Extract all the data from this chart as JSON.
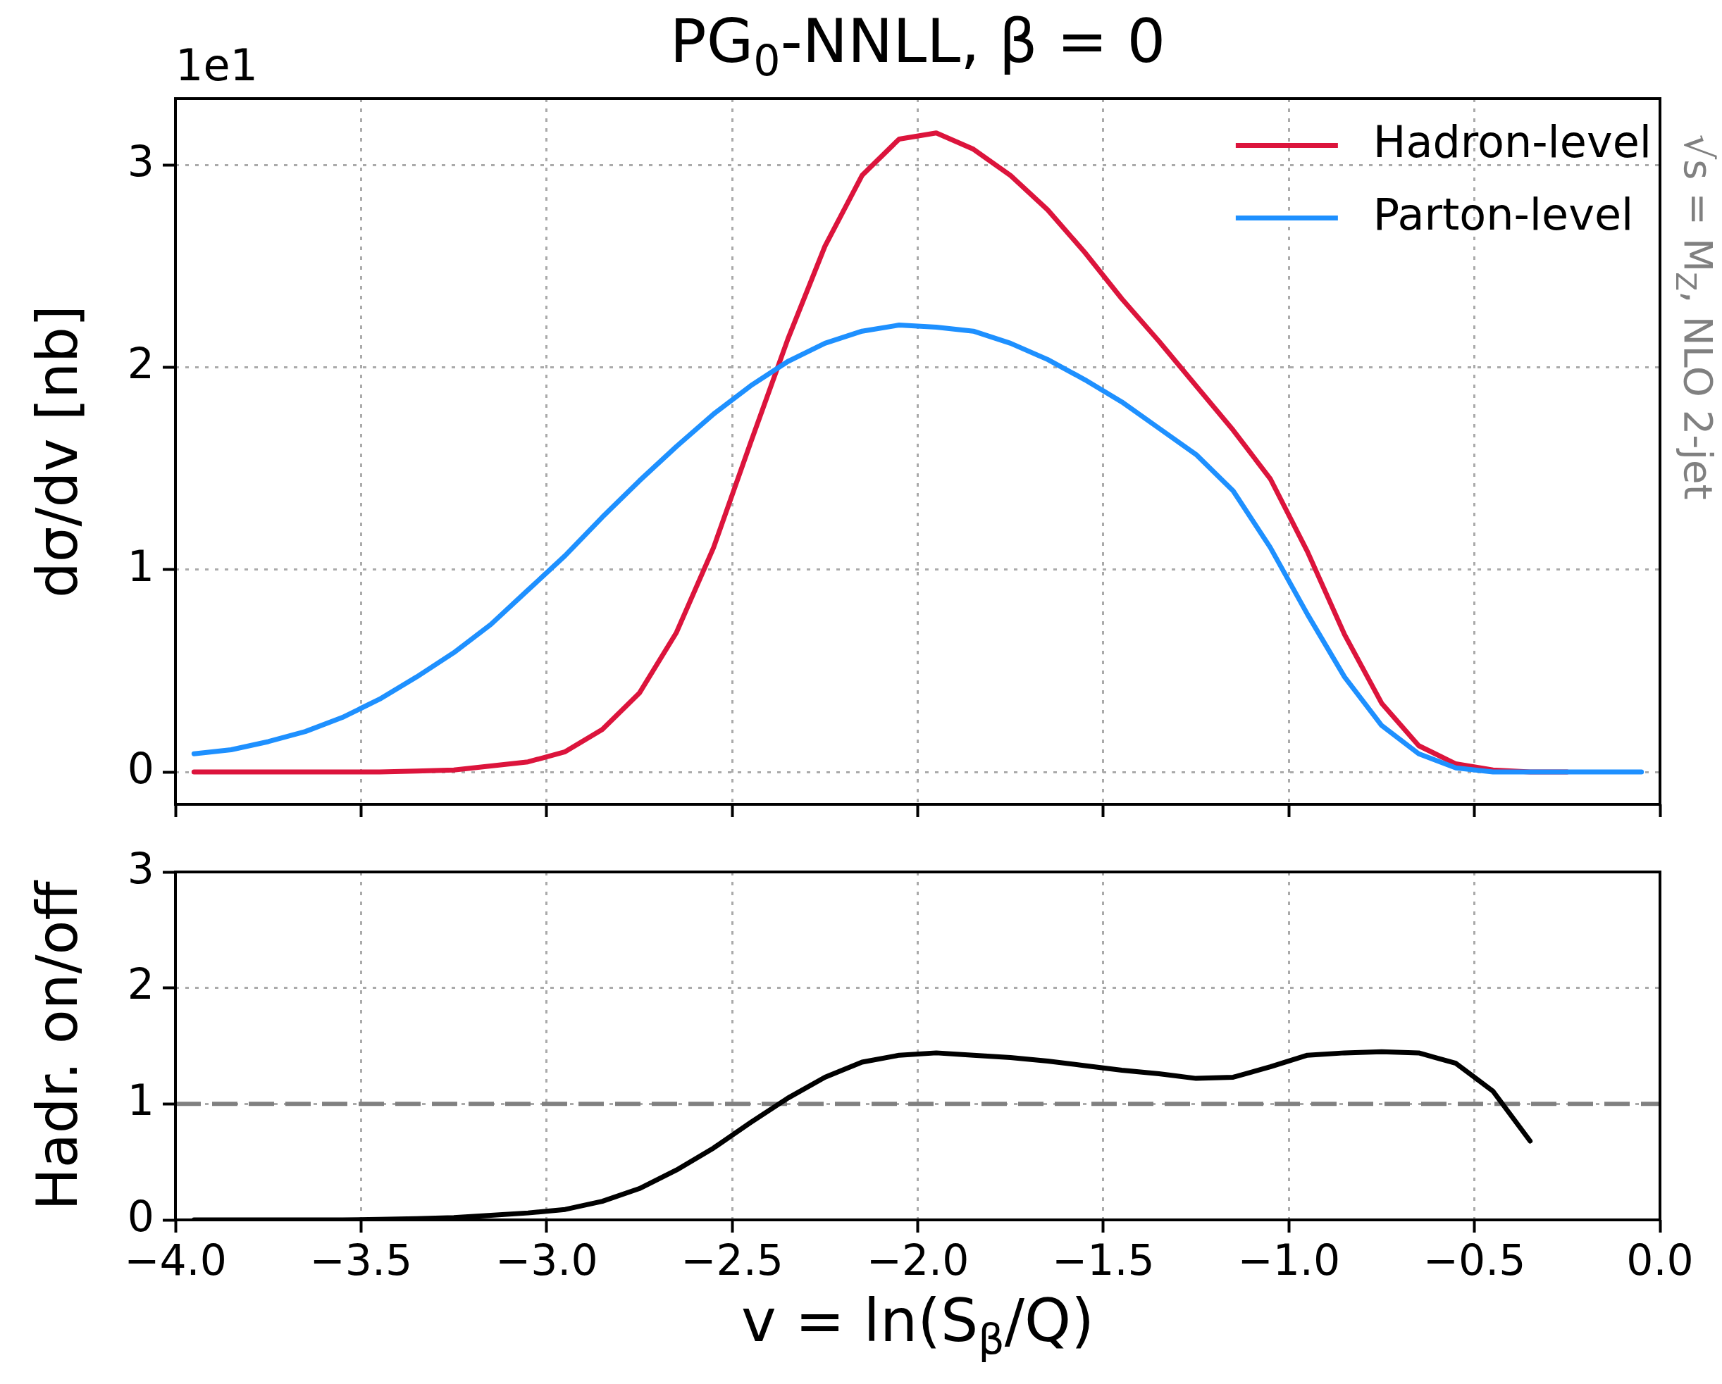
{
  "chart_data": [
    {
      "type": "line",
      "title": "PG$_{0}$-NNLL, β = 0",
      "ylabel": "dσ/dv [nb]",
      "annotations": [
        "1e1",
        "√s = M$_{Z}$, NLO 2-jet"
      ],
      "x": [
        -3.95,
        -3.85,
        -3.75,
        -3.65,
        -3.55,
        -3.45,
        -3.35,
        -3.25,
        -3.15,
        -3.05,
        -2.95,
        -2.85,
        -2.75,
        -2.65,
        -2.55,
        -2.45,
        -2.35,
        -2.25,
        -2.15,
        -2.05,
        -1.95,
        -1.85,
        -1.75,
        -1.65,
        -1.55,
        -1.45,
        -1.35,
        -1.25,
        -1.15,
        -1.05,
        -0.95,
        -0.85,
        -0.75,
        -0.65,
        -0.55,
        -0.45,
        -0.35,
        -0.25,
        -0.15,
        -0.05
      ],
      "series": [
        {
          "name": "Hadron-level",
          "color": "#dc143c",
          "values": [
            0,
            0,
            0,
            0,
            0,
            0,
            0.005,
            0.01,
            0.03,
            0.05,
            0.1,
            0.21,
            0.39,
            0.69,
            1.11,
            1.63,
            2.14,
            2.6,
            2.95,
            3.13,
            3.16,
            3.08,
            2.95,
            2.78,
            2.57,
            2.34,
            2.13,
            1.91,
            1.69,
            1.45,
            1.09,
            0.68,
            0.34,
            0.13,
            0.04,
            0.01,
            0,
            0,
            null,
            null
          ]
        },
        {
          "name": "Parton-level",
          "color": "#1e90ff",
          "values": [
            0.09,
            0.11,
            0.15,
            0.2,
            0.27,
            0.36,
            0.47,
            0.59,
            0.73,
            0.9,
            1.07,
            1.26,
            1.44,
            1.61,
            1.77,
            1.91,
            2.03,
            2.12,
            2.18,
            2.21,
            2.2,
            2.18,
            2.12,
            2.04,
            1.94,
            1.83,
            1.7,
            1.57,
            1.39,
            1.11,
            0.78,
            0.47,
            0.23,
            0.09,
            0.02,
            0,
            0,
            0,
            0,
            0
          ]
        }
      ],
      "xlim": [
        -4,
        0
      ],
      "xticks": [
        -4,
        -3.5,
        -3,
        -2.5,
        -2,
        -1.5,
        -1,
        -0.5,
        0
      ],
      "ylim": [
        -0.16,
        3.33
      ],
      "yticks": [
        0,
        1,
        2,
        3
      ],
      "grid": true,
      "legend": "top right",
      "tick_labels": "y"
    },
    {
      "type": "line",
      "ylabel": "Hadr. on/off",
      "xlabel": "v = ln(S$_{β}$/Q)",
      "x": [
        -3.95,
        -3.85,
        -3.75,
        -3.65,
        -3.55,
        -3.45,
        -3.35,
        -3.25,
        -3.15,
        -3.05,
        -2.95,
        -2.85,
        -2.75,
        -2.65,
        -2.55,
        -2.45,
        -2.35,
        -2.25,
        -2.15,
        -2.05,
        -1.95,
        -1.85,
        -1.75,
        -1.65,
        -1.55,
        -1.45,
        -1.35,
        -1.25,
        -1.15,
        -1.05,
        -0.95,
        -0.85,
        -0.75,
        -0.65,
        -0.55,
        -0.45,
        -0.35
      ],
      "series": [
        {
          "color": "#000000",
          "values": [
            0,
            0,
            0,
            0,
            0,
            0.005,
            0.01,
            0.02,
            0.04,
            0.06,
            0.09,
            0.16,
            0.27,
            0.43,
            0.62,
            0.84,
            1.05,
            1.23,
            1.36,
            1.42,
            1.44,
            1.42,
            1.4,
            1.37,
            1.33,
            1.29,
            1.26,
            1.22,
            1.23,
            1.32,
            1.42,
            1.44,
            1.45,
            1.44,
            1.35,
            1.11,
            0.68
          ]
        }
      ],
      "ref_lines": [
        {
          "axis": "y",
          "value": 1,
          "color": "#808080",
          "line_style": "dashed"
        }
      ],
      "xlim": [
        -4,
        0
      ],
      "xticks": [
        {
          "value": -4,
          "label": "−4.0"
        },
        {
          "value": -3.5,
          "label": "−3.5"
        },
        {
          "value": -3,
          "label": "−3.0"
        },
        {
          "value": -2.5,
          "label": "−2.5"
        },
        {
          "value": -2,
          "label": "−2.0"
        },
        {
          "value": -1.5,
          "label": "−1.5"
        },
        {
          "value": -1,
          "label": "−1.0"
        },
        {
          "value": -0.5,
          "label": "−0.5"
        },
        {
          "value": 0,
          "label": "0.0"
        }
      ],
      "ylim": [
        0,
        3
      ],
      "yticks": [
        0,
        1,
        2,
        3
      ],
      "grid": true
    }
  ]
}
